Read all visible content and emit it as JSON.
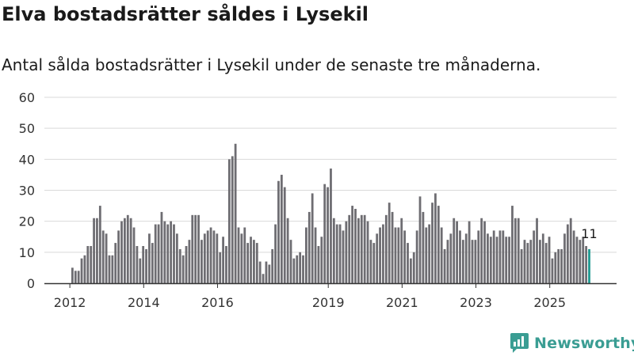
{
  "title": "Elva bostadsrätter såldes i Lysekil",
  "subtitle": "Antal sålda bostadsrätter i Lysekil under de senaste tre månaderna.",
  "logo": {
    "name": "newsworthy-logo-icon",
    "text": "Newsworthy",
    "color": "#3a9d93"
  },
  "colors": {
    "bar": "#6e6d72",
    "highlight": "#1f9a91",
    "grid": "#d9d9d9",
    "axis": "#333333",
    "text": "#333333"
  },
  "chart_data": {
    "type": "bar",
    "title": "Elva bostadsrätter såldes i Lysekil",
    "subtitle": "Antal sålda bostadsrätter i Lysekil under de senaste tre månaderna.",
    "xlabel": "",
    "ylabel": "",
    "ylim": [
      0,
      60
    ],
    "yticks": [
      0,
      10,
      20,
      30,
      40,
      50,
      60
    ],
    "grid": true,
    "x_start": 2012.04,
    "x_step": 0.08333,
    "xticks": [
      {
        "label": "2012",
        "value": 2012.0
      },
      {
        "label": "2014",
        "value": 2014.0
      },
      {
        "label": "2016",
        "value": 2016.0
      },
      {
        "label": "2019",
        "value": 2019.0
      },
      {
        "label": "2021",
        "value": 2021.0
      },
      {
        "label": "2023",
        "value": 2023.0
      },
      {
        "label": "2025",
        "value": 2025.0
      }
    ],
    "values": [
      5,
      4,
      4,
      8,
      9,
      12,
      12,
      21,
      21,
      25,
      17,
      16,
      9,
      9,
      13,
      17,
      20,
      21,
      22,
      21,
      18,
      12,
      8,
      12,
      11,
      16,
      13,
      19,
      19,
      23,
      20,
      19,
      20,
      19,
      16,
      11,
      9,
      12,
      14,
      22,
      22,
      22,
      14,
      16,
      17,
      18,
      17,
      16,
      10,
      15,
      12,
      40,
      41,
      45,
      18,
      16,
      18,
      13,
      15,
      14,
      13,
      7,
      3,
      7,
      6,
      11,
      19,
      33,
      35,
      31,
      21,
      14,
      8,
      9,
      10,
      9,
      18,
      23,
      29,
      18,
      12,
      15,
      32,
      31,
      37,
      21,
      19,
      19,
      17,
      20,
      22,
      25,
      24,
      21,
      22,
      22,
      20,
      14,
      13,
      16,
      18,
      19,
      22,
      26,
      23,
      18,
      18,
      21,
      17,
      13,
      8,
      10,
      17,
      28,
      23,
      18,
      19,
      26,
      29,
      25,
      18,
      11,
      14,
      16,
      21,
      20,
      17,
      14,
      16,
      20,
      14,
      14,
      17,
      21,
      20,
      16,
      15,
      17,
      15,
      17,
      17,
      15,
      15,
      25,
      21,
      21,
      11,
      14,
      13,
      14,
      17,
      21,
      14,
      16,
      13,
      15,
      8,
      10,
      11,
      11,
      16,
      19,
      21,
      17,
      15,
      14,
      15,
      12,
      11
    ],
    "highlight_last": true,
    "annotation": {
      "label": "11",
      "value": 11
    }
  }
}
